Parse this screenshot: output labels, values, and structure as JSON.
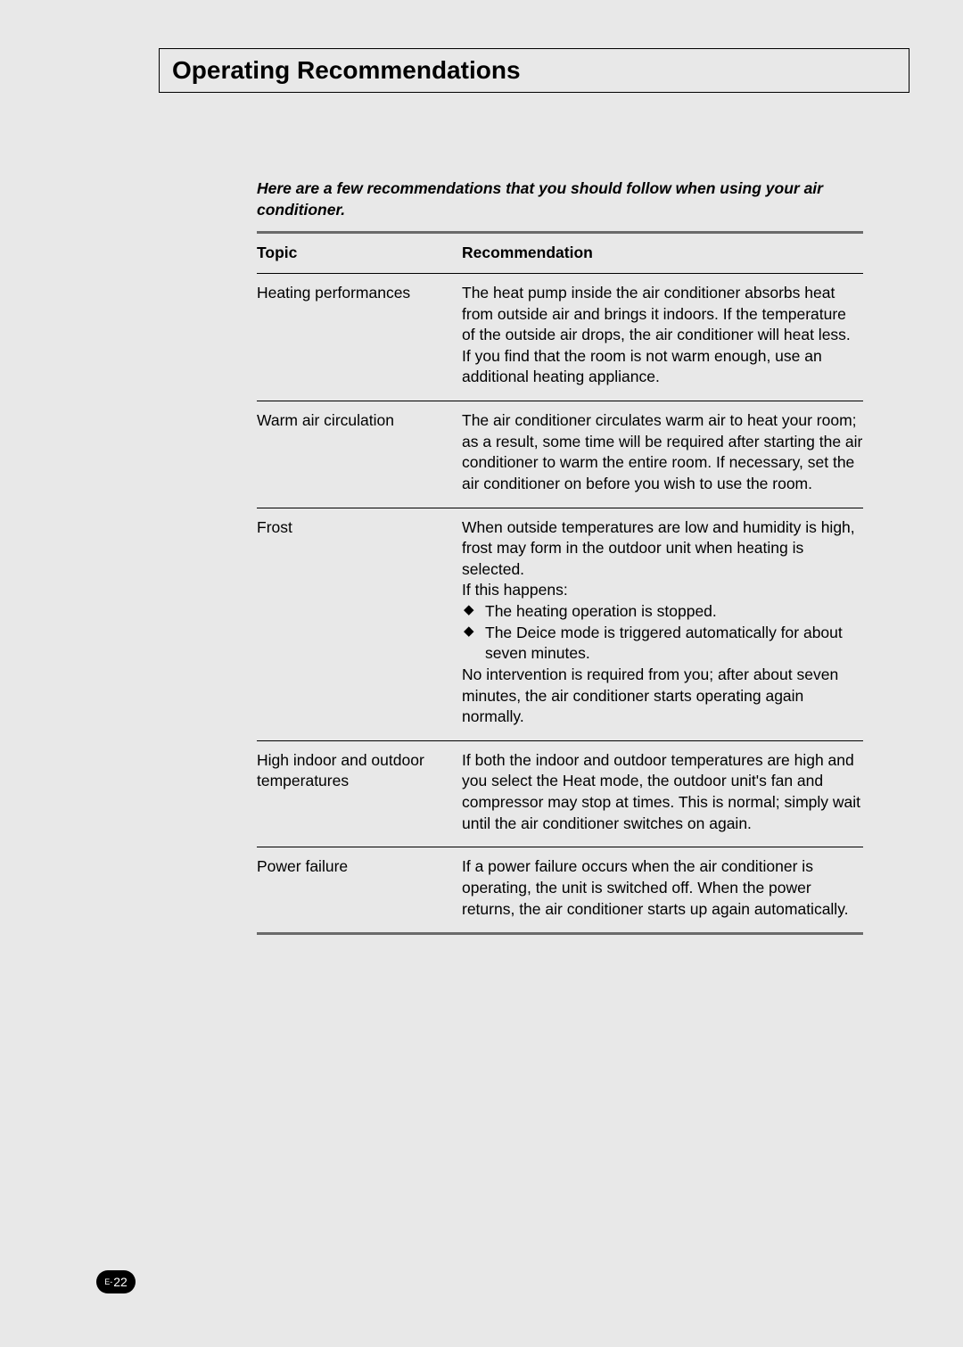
{
  "title": "Operating Recommendations",
  "intro": "Here are a few recommendations that you should follow when using your air conditioner.",
  "headers": {
    "topic": "Topic",
    "recommendation": "Recommendation"
  },
  "rows": [
    {
      "topic": "Heating performances",
      "recommendation": "The heat pump inside the air conditioner absorbs heat from outside air and brings it indoors. If the temperature of the outside air drops, the air conditioner will heat less. If you find that the room is not warm enough, use an additional heating appliance."
    },
    {
      "topic": "Warm air circulation",
      "recommendation": "The air conditioner circulates warm air to heat your room; as a result, some time will be required after starting the air conditioner to warm the entire room. If necessary, set the air conditioner on before you wish to use the room."
    },
    {
      "topic": "Frost",
      "pre": "When outside temperatures are low and humidity is high, frost may form in the outdoor unit when heating is selected.\nIf this happens:",
      "bullets": [
        "The heating operation is stopped.",
        "The Deice mode is triggered automatically for about seven minutes."
      ],
      "post": "No intervention is required from you; after about seven minutes, the air conditioner starts operating again normally."
    },
    {
      "topic": "High indoor and outdoor temperatures",
      "recommendation": "If both the indoor and outdoor temperatures are high and you select the Heat mode, the outdoor unit's fan and compressor may stop at times. This is normal; simply wait until the air conditioner switches on again."
    },
    {
      "topic": "Power failure",
      "recommendation": "If a power failure occurs when the air conditioner is operating, the unit is switched off. When the power returns, the air conditioner starts up again automatically."
    }
  ],
  "pageNumber": {
    "prefix": "E-",
    "num": "22"
  }
}
